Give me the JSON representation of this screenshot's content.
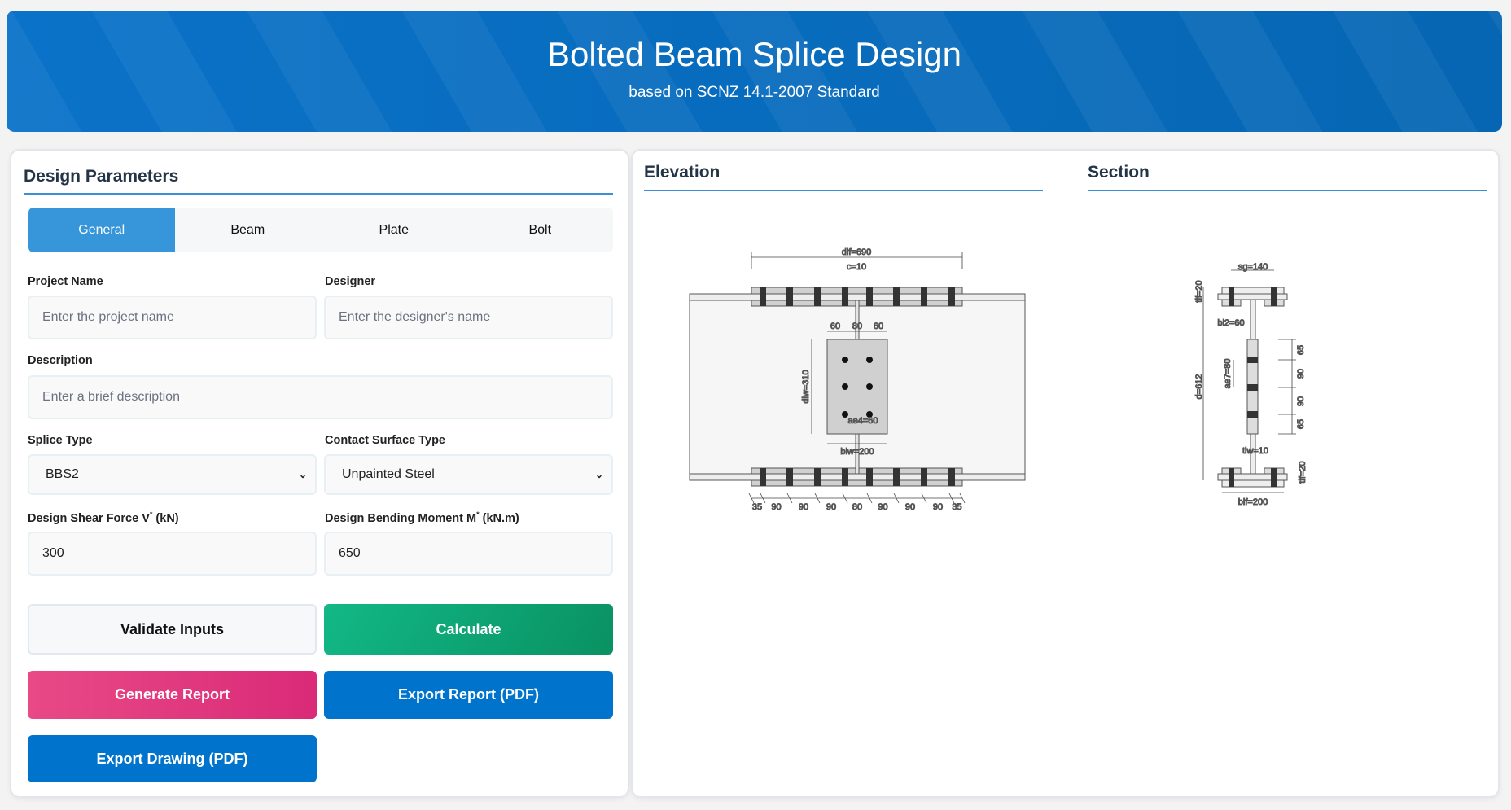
{
  "header": {
    "title": "Bolted Beam Splice Design",
    "subtitle": "based on SCNZ 14.1-2007 Standard"
  },
  "params": {
    "title": "Design Parameters",
    "tabs": [
      {
        "label": "General",
        "active": true
      },
      {
        "label": "Beam"
      },
      {
        "label": "Plate"
      },
      {
        "label": "Bolt"
      }
    ],
    "project_name": {
      "label": "Project Name",
      "placeholder": "Enter the project name",
      "value": ""
    },
    "designer": {
      "label": "Designer",
      "placeholder": "Enter the designer's name",
      "value": ""
    },
    "description": {
      "label": "Description",
      "placeholder": "Enter a brief description",
      "value": ""
    },
    "splice_type": {
      "label": "Splice Type",
      "value": "BBS2"
    },
    "contact_surface": {
      "label": "Contact Surface Type",
      "value": "Unpainted Steel"
    },
    "shear": {
      "label_main": "Design Shear Force V",
      "label_sup": "*",
      "label_unit": " (kN)",
      "value": "300"
    },
    "moment": {
      "label_main": "Design Bending Moment M",
      "label_sup": "*",
      "label_unit": " (kN.m)",
      "value": "650"
    },
    "buttons": {
      "validate": "Validate Inputs",
      "calculate": "Calculate",
      "generate_report": "Generate Report",
      "export_report": "Export Report (PDF)",
      "export_drawing": "Export Drawing (PDF)"
    }
  },
  "colors": {
    "accent": "#3796da",
    "header": "#0a72c8",
    "calculate": "#10b981",
    "generate": "#e0407e",
    "export": "#0074cc"
  },
  "elevation": {
    "title": "Elevation",
    "dif": "dif=690",
    "c": "c=10",
    "top_dims": [
      "60",
      "80",
      "60"
    ],
    "diw": "diw=310",
    "biw": "biw=200",
    "ae4": "ae4=60",
    "bottom_dims": [
      "35",
      "90",
      "90",
      "90",
      "80",
      "90",
      "90",
      "90",
      "35"
    ]
  },
  "section": {
    "title": "Section",
    "sg": "sg=140",
    "tif_top": "tif=20",
    "bi2": "bi2=60",
    "d": "d=612",
    "ae7": "ae7=80",
    "web_dims": [
      "65",
      "90",
      "90",
      "65"
    ],
    "tiw": "tiw=10",
    "tif_bottom": "tif=20",
    "bif": "bif=200"
  }
}
